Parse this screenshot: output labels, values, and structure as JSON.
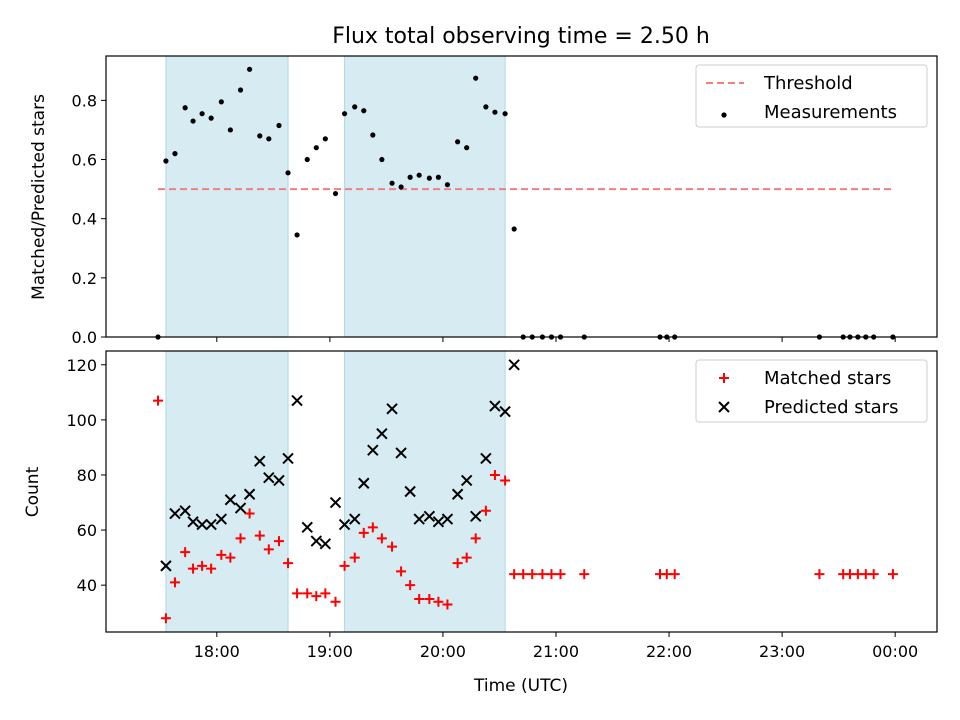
{
  "title": "Flux total observing time = 2.50 h",
  "colors": {
    "threshold": "#f08080",
    "measurement": "#000000",
    "matched": "#ff0000",
    "predicted": "#000000",
    "shade": "#add8e6"
  },
  "chart_data": [
    {
      "type": "scatter",
      "title": "Flux total observing time = 2.50 h",
      "xlabel": "",
      "ylabel": "Matched/Predicted stars",
      "x_unit": "hours (UTC, values past 24 are after midnight)",
      "xlim": [
        17.02,
        24.37
      ],
      "ylim": [
        0.0,
        0.95
      ],
      "yticks": [
        0.0,
        0.2,
        0.4,
        0.6,
        0.8
      ],
      "ytick_labels": [
        "0.0",
        "0.2",
        "0.4",
        "0.6",
        "0.8"
      ],
      "xticks": [
        18,
        19,
        20,
        21,
        22,
        23,
        24
      ],
      "grid": false,
      "legend_position": "top-right",
      "legend": [
        "Threshold",
        "Measurements"
      ],
      "shaded_intervals": [
        [
          17.55,
          18.63
        ],
        [
          19.13,
          20.55
        ]
      ],
      "threshold": {
        "name": "Threshold",
        "y": 0.5,
        "x_range": [
          17.48,
          23.98
        ]
      },
      "series": [
        {
          "name": "Measurements",
          "x": [
            17.48,
            17.55,
            17.63,
            17.72,
            17.79,
            17.87,
            17.95,
            18.04,
            18.12,
            18.21,
            18.29,
            18.38,
            18.46,
            18.55,
            18.63,
            18.71,
            18.8,
            18.88,
            18.96,
            19.05,
            19.13,
            19.22,
            19.3,
            19.38,
            19.46,
            19.55,
            19.63,
            19.71,
            19.79,
            19.88,
            19.96,
            20.04,
            20.13,
            20.21,
            20.29,
            20.38,
            20.46,
            20.55,
            20.63,
            20.71,
            20.79,
            20.88,
            20.96,
            21.04,
            21.25,
            21.92,
            21.98,
            22.05,
            23.33,
            23.54,
            23.6,
            23.67,
            23.74,
            23.81,
            23.98
          ],
          "y": [
            0.0,
            0.595,
            0.62,
            0.775,
            0.73,
            0.755,
            0.74,
            0.795,
            0.7,
            0.835,
            0.905,
            0.68,
            0.67,
            0.715,
            0.555,
            0.345,
            0.6,
            0.64,
            0.67,
            0.485,
            0.755,
            0.778,
            0.765,
            0.683,
            0.6,
            0.52,
            0.507,
            0.54,
            0.547,
            0.537,
            0.54,
            0.515,
            0.66,
            0.64,
            0.875,
            0.778,
            0.76,
            0.755,
            0.365,
            0.0,
            0.0,
            0.0,
            0.0,
            0.0,
            0.0,
            0.0,
            0.0,
            0.0,
            0.0,
            0.0,
            0.0,
            0.0,
            0.0,
            0.0,
            0.0
          ]
        }
      ]
    },
    {
      "type": "scatter",
      "xlabel": "Time (UTC)",
      "ylabel": "Count",
      "xlim": [
        17.02,
        24.37
      ],
      "ylim": [
        23.0,
        125.0
      ],
      "yticks": [
        40,
        60,
        80,
        100,
        120
      ],
      "ytick_labels": [
        "40",
        "60",
        "80",
        "100",
        "120"
      ],
      "xticks": [
        18,
        19,
        20,
        21,
        22,
        23,
        24
      ],
      "xtick_labels": [
        "18:00",
        "19:00",
        "20:00",
        "21:00",
        "22:00",
        "23:00",
        "00:00"
      ],
      "grid": false,
      "legend_position": "top-right",
      "legend": [
        "Matched stars",
        "Predicted stars"
      ],
      "shaded_intervals": [
        [
          17.55,
          18.63
        ],
        [
          19.13,
          20.55
        ]
      ],
      "series": [
        {
          "name": "Matched stars",
          "marker": "+",
          "x": [
            17.48,
            17.55,
            17.63,
            17.72,
            17.79,
            17.87,
            17.95,
            18.04,
            18.12,
            18.21,
            18.29,
            18.38,
            18.46,
            18.55,
            18.63,
            18.71,
            18.8,
            18.88,
            18.96,
            19.05,
            19.13,
            19.22,
            19.3,
            19.38,
            19.46,
            19.55,
            19.63,
            19.71,
            19.79,
            19.88,
            19.96,
            20.04,
            20.13,
            20.21,
            20.29,
            20.38,
            20.46,
            20.55,
            20.63,
            20.71,
            20.79,
            20.88,
            20.96,
            21.04,
            21.25,
            21.92,
            21.98,
            22.05,
            23.33,
            23.54,
            23.6,
            23.67,
            23.74,
            23.81,
            23.98
          ],
          "y": [
            107,
            28,
            41,
            52,
            46,
            47,
            46,
            51,
            50,
            57,
            66,
            58,
            53,
            56,
            48,
            37,
            37,
            36,
            37,
            34,
            47,
            50,
            59,
            61,
            57,
            54,
            45,
            40,
            35,
            35,
            34,
            33,
            48,
            50,
            57,
            67,
            80,
            78,
            44,
            44,
            44,
            44,
            44,
            44,
            44,
            44,
            44,
            44,
            44,
            44,
            44,
            44,
            44,
            44,
            44
          ]
        },
        {
          "name": "Predicted stars",
          "marker": "x",
          "x": [
            17.55,
            17.63,
            17.72,
            17.79,
            17.87,
            17.95,
            18.04,
            18.12,
            18.21,
            18.29,
            18.38,
            18.46,
            18.55,
            18.63,
            18.71,
            18.8,
            18.88,
            18.96,
            19.05,
            19.13,
            19.22,
            19.3,
            19.38,
            19.46,
            19.55,
            19.63,
            19.71,
            19.79,
            19.88,
            19.96,
            20.04,
            20.13,
            20.21,
            20.29,
            20.38,
            20.46,
            20.55,
            20.63
          ],
          "y": [
            47,
            66,
            67,
            63,
            62,
            62,
            64,
            71,
            68,
            73,
            85,
            79,
            78,
            86,
            107,
            61,
            56,
            55,
            70,
            62,
            64,
            77,
            89,
            95,
            104,
            88,
            74,
            64,
            65,
            63,
            64,
            73,
            78,
            65,
            86,
            105,
            103,
            120
          ]
        }
      ]
    }
  ]
}
